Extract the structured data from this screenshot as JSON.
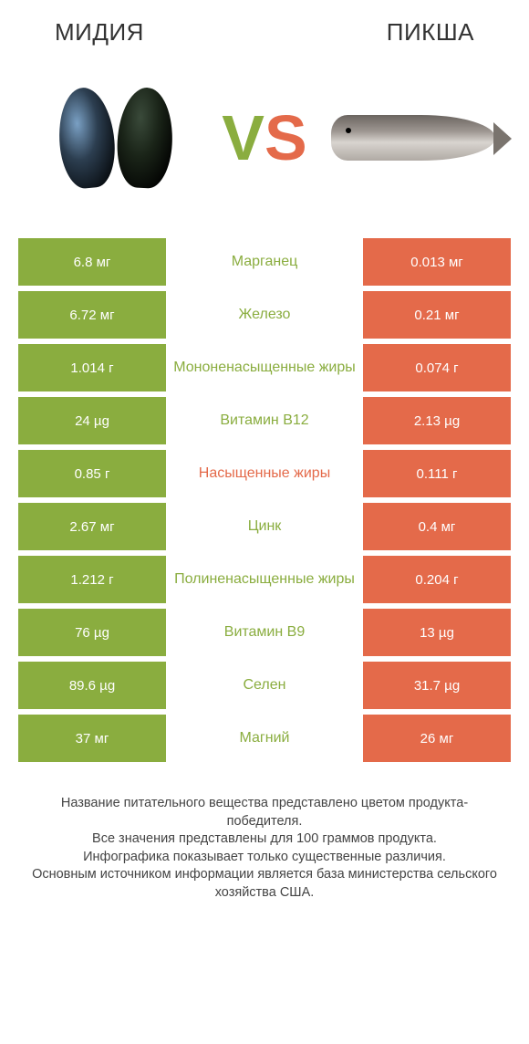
{
  "header": {
    "left_title": "МИДИЯ",
    "right_title": "ПИКША"
  },
  "vs": {
    "v": "V",
    "s": "S"
  },
  "colors": {
    "green": "#8aad3f",
    "red": "#e46a4a",
    "background": "#ffffff",
    "text": "#333333"
  },
  "table": {
    "rows": [
      {
        "left": "6.8 мг",
        "nutrient": "Марганец",
        "winner": "green",
        "right": "0.013 мг"
      },
      {
        "left": "6.72 мг",
        "nutrient": "Железо",
        "winner": "green",
        "right": "0.21 мг"
      },
      {
        "left": "1.014 г",
        "nutrient": "Мононенасыщенные жиры",
        "winner": "green",
        "right": "0.074 г"
      },
      {
        "left": "24 µg",
        "nutrient": "Витамин B12",
        "winner": "green",
        "right": "2.13 µg"
      },
      {
        "left": "0.85 г",
        "nutrient": "Насыщенные жиры",
        "winner": "red",
        "right": "0.111 г"
      },
      {
        "left": "2.67 мг",
        "nutrient": "Цинк",
        "winner": "green",
        "right": "0.4 мг"
      },
      {
        "left": "1.212 г",
        "nutrient": "Полиненасыщенные жиры",
        "winner": "green",
        "right": "0.204 г"
      },
      {
        "left": "76 µg",
        "nutrient": "Витамин B9",
        "winner": "green",
        "right": "13 µg"
      },
      {
        "left": "89.6 µg",
        "nutrient": "Селен",
        "winner": "green",
        "right": "31.7 µg"
      },
      {
        "left": "37 мг",
        "nutrient": "Магний",
        "winner": "green",
        "right": "26 мг"
      }
    ]
  },
  "footer": {
    "text": "Название питательного вещества представлено цветом продукта-победителя.\nВсе значения представлены для 100 граммов продукта.\nИнфографика показывает только существенные различия.\nОсновным источником информации является база министерства сельского хозяйства США."
  }
}
